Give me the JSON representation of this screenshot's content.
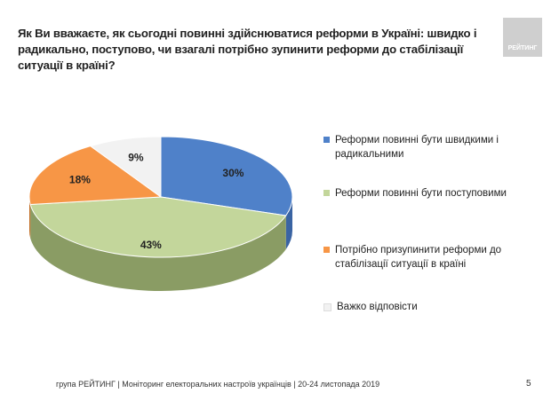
{
  "title": "Як Ви вважаєте, як сьогодні повинні здійснюватися реформи в Україні: швидко і радикально, поступово, чи взагалі потрібно зупинити реформи до стабілізації ситуації в країні?",
  "logo_text": "РЕЙТИНГ",
  "chart_data": {
    "type": "pie",
    "title": "Як Ви вважаєте, як сьогодні повинні здійснюватися реформи в Україні: швидко і радикально, поступово, чи взагалі потрібно зупинити реформи до стабілізації ситуації в країні?",
    "categories": [
      "Реформи повинні бути швидкими і радикальними",
      "Реформи повинні бути поступовими",
      "Потрібно призупинити реформи до стабілізації ситуації в країні",
      "Важко відповісти"
    ],
    "values": [
      30,
      43,
      18,
      9
    ],
    "labels": [
      "30%",
      "43%",
      "18%",
      "9%"
    ],
    "colors": [
      "#4f81c9",
      "#c3d69b",
      "#f79646",
      "#f2f2f2"
    ],
    "side_colors": [
      "#3a64a3",
      "#8a9c64",
      "#c06a20",
      "#bdbdbd"
    ],
    "legend_position": "right"
  },
  "footer": "група РЕЙТИНГ | Моніторинг електоральних настроїв українців | 20-24 листопада 2019",
  "page_number": "5"
}
